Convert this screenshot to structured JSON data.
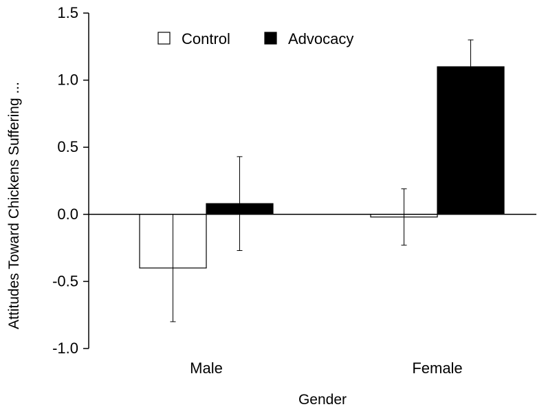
{
  "chart_data": {
    "type": "bar",
    "categories": [
      "Male",
      "Female"
    ],
    "series": [
      {
        "name": "Control",
        "color": "#ffffff",
        "values": [
          -0.4,
          -0.02
        ],
        "error": [
          0.4,
          0.21
        ]
      },
      {
        "name": "Advocacy",
        "color": "#000000",
        "values": [
          0.08,
          1.1
        ],
        "error": [
          0.35,
          0.2
        ]
      }
    ],
    "xlabel": "Gender",
    "ylabel": "Attitudes Toward Chickens Suffering ...",
    "ylim": [
      -1.0,
      1.5
    ],
    "yticks": [
      1.5,
      1.0,
      0.5,
      0.0,
      -0.5,
      -1.0
    ],
    "ytick_labels": [
      "1.5",
      "1.0",
      "0.5",
      "0.0",
      "-0.5",
      "-1.0"
    ],
    "legend_position": "top-left",
    "grid": false
  }
}
